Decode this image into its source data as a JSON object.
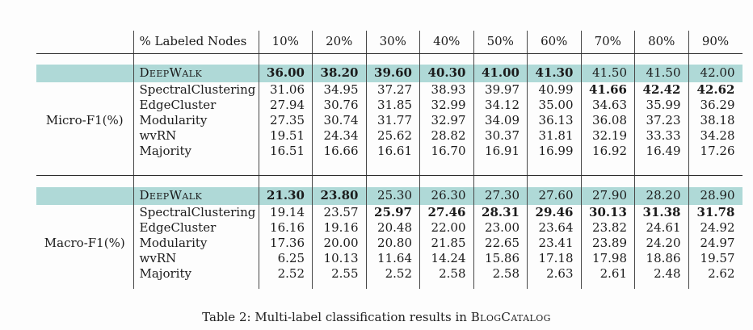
{
  "colors": {
    "highlight": "#afd9d7",
    "rule": "#2d2d2d"
  },
  "caption": {
    "prefix": "Table 2: Multi-label classification results in ",
    "smallcaps": "BlogCatalog"
  },
  "table": {
    "header": {
      "label": "% Labeled Nodes",
      "columns": [
        "10%",
        "20%",
        "30%",
        "40%",
        "50%",
        "60%",
        "70%",
        "80%",
        "90%"
      ]
    },
    "sections": [
      {
        "group_label": "Micro-F1(%)",
        "rows": [
          {
            "method": "DeepWalk",
            "smallcaps": true,
            "highlight": true,
            "values": [
              "36.00",
              "38.20",
              "39.60",
              "40.30",
              "41.00",
              "41.30",
              "41.50",
              "41.50",
              "42.00"
            ],
            "bold": [
              true,
              true,
              true,
              true,
              true,
              true,
              false,
              false,
              false
            ]
          },
          {
            "method": "SpectralClustering",
            "smallcaps": false,
            "highlight": false,
            "values": [
              "31.06",
              "34.95",
              "37.27",
              "38.93",
              "39.97",
              "40.99",
              "41.66",
              "42.42",
              "42.62"
            ],
            "bold": [
              false,
              false,
              false,
              false,
              false,
              false,
              true,
              true,
              true
            ]
          },
          {
            "method": "EdgeCluster",
            "smallcaps": false,
            "highlight": false,
            "values": [
              "27.94",
              "30.76",
              "31.85",
              "32.99",
              "34.12",
              "35.00",
              "34.63",
              "35.99",
              "36.29"
            ],
            "bold": [
              false,
              false,
              false,
              false,
              false,
              false,
              false,
              false,
              false
            ]
          },
          {
            "method": "Modularity",
            "smallcaps": false,
            "highlight": false,
            "values": [
              "27.35",
              "30.74",
              "31.77",
              "32.97",
              "34.09",
              "36.13",
              "36.08",
              "37.23",
              "38.18"
            ],
            "bold": [
              false,
              false,
              false,
              false,
              false,
              false,
              false,
              false,
              false
            ]
          },
          {
            "method": "wvRN",
            "smallcaps": false,
            "highlight": false,
            "values": [
              "19.51",
              "24.34",
              "25.62",
              "28.82",
              "30.37",
              "31.81",
              "32.19",
              "33.33",
              "34.28"
            ],
            "bold": [
              false,
              false,
              false,
              false,
              false,
              false,
              false,
              false,
              false
            ]
          },
          {
            "method": "Majority",
            "smallcaps": false,
            "highlight": false,
            "values": [
              "16.51",
              "16.66",
              "16.61",
              "16.70",
              "16.91",
              "16.99",
              "16.92",
              "16.49",
              "17.26"
            ],
            "bold": [
              false,
              false,
              false,
              false,
              false,
              false,
              false,
              false,
              false
            ]
          }
        ]
      },
      {
        "group_label": "Macro-F1(%)",
        "rows": [
          {
            "method": "DeepWalk",
            "smallcaps": true,
            "highlight": true,
            "values": [
              "21.30",
              "23.80",
              "25.30",
              "26.30",
              "27.30",
              "27.60",
              "27.90",
              "28.20",
              "28.90"
            ],
            "bold": [
              true,
              true,
              false,
              false,
              false,
              false,
              false,
              false,
              false
            ]
          },
          {
            "method": "SpectralClustering",
            "smallcaps": false,
            "highlight": false,
            "values": [
              "19.14",
              "23.57",
              "25.97",
              "27.46",
              "28.31",
              "29.46",
              "30.13",
              "31.38",
              "31.78"
            ],
            "bold": [
              false,
              false,
              true,
              true,
              true,
              true,
              true,
              true,
              true
            ]
          },
          {
            "method": "EdgeCluster",
            "smallcaps": false,
            "highlight": false,
            "values": [
              "16.16",
              "19.16",
              "20.48",
              "22.00",
              "23.00",
              "23.64",
              "23.82",
              "24.61",
              "24.92"
            ],
            "bold": [
              false,
              false,
              false,
              false,
              false,
              false,
              false,
              false,
              false
            ]
          },
          {
            "method": "Modularity",
            "smallcaps": false,
            "highlight": false,
            "values": [
              "17.36",
              "20.00",
              "20.80",
              "21.85",
              "22.65",
              "23.41",
              "23.89",
              "24.20",
              "24.97"
            ],
            "bold": [
              false,
              false,
              false,
              false,
              false,
              false,
              false,
              false,
              false
            ]
          },
          {
            "method": "wvRN",
            "smallcaps": false,
            "highlight": false,
            "values": [
              "6.25",
              "10.13",
              "11.64",
              "14.24",
              "15.86",
              "17.18",
              "17.98",
              "18.86",
              "19.57"
            ],
            "bold": [
              false,
              false,
              false,
              false,
              false,
              false,
              false,
              false,
              false
            ]
          },
          {
            "method": "Majority",
            "smallcaps": false,
            "highlight": false,
            "values": [
              "2.52",
              "2.55",
              "2.52",
              "2.58",
              "2.58",
              "2.63",
              "2.61",
              "2.48",
              "2.62"
            ],
            "bold": [
              false,
              false,
              false,
              false,
              false,
              false,
              false,
              false,
              false
            ]
          }
        ]
      }
    ]
  }
}
